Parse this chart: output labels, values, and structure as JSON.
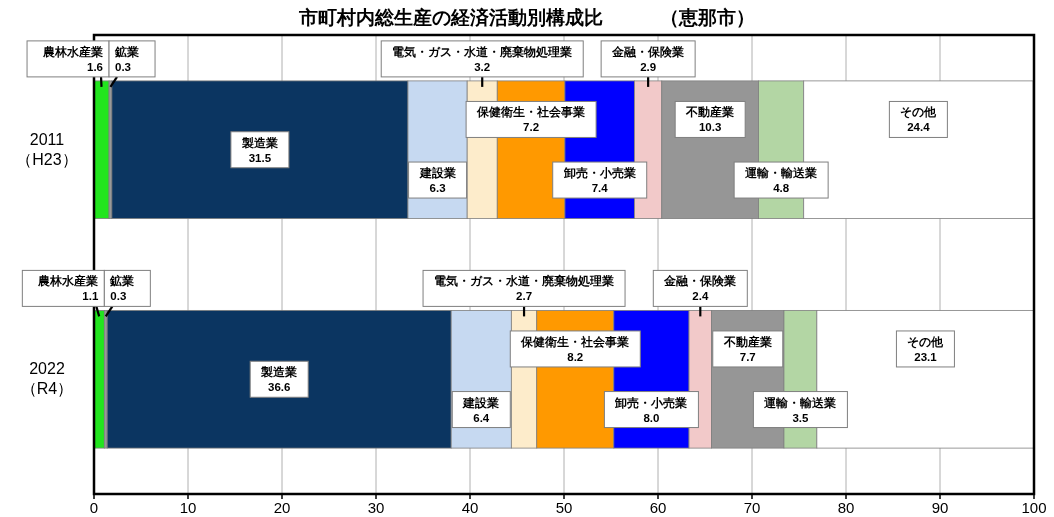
{
  "chart_data": {
    "type": "bar",
    "orientation": "horizontal",
    "stacked": true,
    "title": "市町村内総生産の経済活動別構成比　　　（恵那市）",
    "categories": [
      "2011\n（H23）",
      "2022\n（R4）"
    ],
    "series": [
      {
        "name": "農林水産業",
        "color": "#22e51e",
        "values": [
          1.6,
          1.1
        ],
        "value_labels": [
          "1.6",
          "1.1"
        ]
      },
      {
        "name": "鉱業",
        "color": "#999999",
        "values": [
          0.3,
          0.3
        ],
        "value_labels": [
          "0.3",
          "0.3"
        ]
      },
      {
        "name": "製造業",
        "color": "#0b3561",
        "values": [
          31.5,
          36.6
        ],
        "value_labels": [
          "31.5",
          "36.6"
        ]
      },
      {
        "name": "建設業",
        "color": "#c6d9f1",
        "values": [
          6.3,
          6.4
        ],
        "value_labels": [
          "6.3",
          "6.4"
        ]
      },
      {
        "name": "電気・ガス・水道・廃棄物処理業",
        "color": "#fdeccb",
        "values": [
          3.2,
          2.7
        ],
        "value_labels": [
          "3.2",
          "2.7"
        ]
      },
      {
        "name": "保健衛生・社会事業",
        "color": "#ff9900",
        "values": [
          7.2,
          8.2
        ],
        "value_labels": [
          "7.2",
          "8.2"
        ]
      },
      {
        "name": "卸売・小売業",
        "color": "#0000ff",
        "values": [
          7.4,
          8.0
        ],
        "value_labels": [
          "7.4",
          "8.0"
        ]
      },
      {
        "name": "金融・保険業",
        "color": "#f2c9c9",
        "values": [
          2.9,
          2.4
        ],
        "value_labels": [
          "2.9",
          "2.4"
        ]
      },
      {
        "name": "不動産業",
        "color": "#969696",
        "values": [
          10.3,
          7.7
        ],
        "value_labels": [
          "10.3",
          "7.7"
        ]
      },
      {
        "name": "運輸・輸送業",
        "color": "#b3d6a4",
        "values": [
          4.8,
          3.5
        ],
        "value_labels": [
          "4.8",
          "3.5"
        ]
      },
      {
        "name": "その他",
        "color": "#ffffff",
        "values": [
          24.4,
          23.1
        ],
        "value_labels": [
          "24.4",
          "23.1"
        ]
      }
    ],
    "xlim": [
      0,
      100
    ],
    "xticks": [
      0,
      10,
      20,
      30,
      40,
      50,
      60,
      70,
      80,
      90,
      100
    ],
    "grid": "x"
  }
}
